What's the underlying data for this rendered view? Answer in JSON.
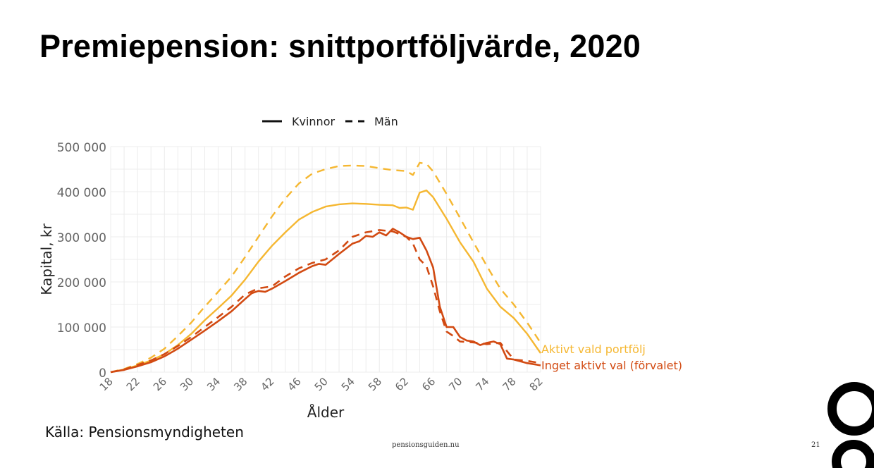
{
  "slide": {
    "title": "Premiepension: snittportföljvärde, 2020",
    "source": "Källa: Pensionsmyndigheten",
    "footer_site": "pensionsguiden.nu",
    "page_number": "21"
  },
  "colors": {
    "aktivt": "#f5b731",
    "inget": "#d24a12",
    "grid": "#ececec",
    "axis_text": "#666666"
  },
  "chart_data": {
    "type": "line",
    "title": "",
    "xlabel": "Ålder",
    "ylabel": "Kapital, kr",
    "xlim": [
      18,
      82
    ],
    "ylim": [
      0,
      500000
    ],
    "x_ticks": [
      18,
      22,
      26,
      30,
      34,
      38,
      42,
      46,
      50,
      54,
      58,
      62,
      66,
      70,
      74,
      78,
      82
    ],
    "x_tick_labels": [
      "18",
      "22",
      "26",
      "30",
      "34",
      "38",
      "42",
      "46",
      "50",
      "54",
      "58",
      "62",
      "66",
      "70",
      "74",
      "78",
      "82"
    ],
    "y_ticks": [
      0,
      100000,
      200000,
      300000,
      400000,
      500000
    ],
    "y_tick_labels": [
      "0",
      "100 000",
      "200 000",
      "300 000",
      "400 000",
      "500 000"
    ],
    "grid": true,
    "legend": {
      "position": "top",
      "entries": [
        {
          "label": "Kvinnor",
          "style": "solid"
        },
        {
          "label": "Män",
          "style": "dashed"
        }
      ]
    },
    "annotations": [
      {
        "label": "Aktivt vald portfölj",
        "series_group": "aktivt"
      },
      {
        "label": "Inget aktivt val (förvalet)",
        "series_group": "inget"
      }
    ],
    "series": [
      {
        "name": "Aktivt vald portfölj – Kvinnor",
        "group": "aktivt",
        "style": "solid",
        "x": [
          18,
          20,
          22,
          24,
          26,
          28,
          30,
          32,
          34,
          36,
          38,
          40,
          42,
          44,
          46,
          48,
          50,
          52,
          54,
          56,
          58,
          60,
          61,
          62,
          63,
          64,
          65,
          66,
          68,
          70,
          72,
          74,
          76,
          78,
          80,
          82
        ],
        "y": [
          0,
          6000,
          15000,
          26000,
          40000,
          60000,
          85000,
          115000,
          142000,
          170000,
          205000,
          245000,
          280000,
          310000,
          338000,
          355000,
          367000,
          372000,
          374000,
          373000,
          371000,
          370000,
          364000,
          365000,
          360000,
          398000,
          403000,
          388000,
          340000,
          288000,
          245000,
          185000,
          145000,
          120000,
          85000,
          42000
        ]
      },
      {
        "name": "Aktivt vald portfölj – Män",
        "group": "aktivt",
        "style": "dashed",
        "x": [
          18,
          20,
          22,
          24,
          26,
          28,
          30,
          32,
          34,
          36,
          38,
          40,
          42,
          44,
          46,
          48,
          50,
          52,
          54,
          56,
          58,
          60,
          62,
          63,
          64,
          65,
          66,
          68,
          70,
          72,
          74,
          76,
          78,
          80,
          82
        ],
        "y": [
          0,
          7000,
          18000,
          32000,
          52000,
          80000,
          110000,
          145000,
          178000,
          212000,
          255000,
          300000,
          345000,
          385000,
          418000,
          440000,
          450000,
          457000,
          458000,
          457000,
          452000,
          448000,
          446000,
          437000,
          464000,
          462000,
          445000,
          395000,
          342000,
          288000,
          235000,
          185000,
          150000,
          110000,
          65000
        ]
      },
      {
        "name": "Inget aktivt val – Kvinnor",
        "group": "inget",
        "style": "solid",
        "x": [
          18,
          20,
          22,
          24,
          26,
          28,
          30,
          32,
          34,
          36,
          38,
          39,
          40,
          41,
          42,
          44,
          46,
          48,
          49,
          50,
          52,
          54,
          55,
          56,
          57,
          58,
          59,
          60,
          61,
          62,
          63,
          64,
          65,
          66,
          67,
          68,
          69,
          70,
          71,
          72,
          73,
          74,
          75,
          76,
          77,
          78,
          80,
          82
        ],
        "y": [
          0,
          5000,
          13000,
          22000,
          35000,
          52000,
          72000,
          92000,
          113000,
          135000,
          162000,
          175000,
          180000,
          178000,
          185000,
          202000,
          220000,
          235000,
          240000,
          238000,
          262000,
          285000,
          290000,
          302000,
          300000,
          310000,
          303000,
          318000,
          310000,
          300000,
          295000,
          298000,
          270000,
          232000,
          145000,
          100000,
          100000,
          78000,
          70000,
          68000,
          60000,
          65000,
          68000,
          62000,
          30000,
          28000,
          20000,
          15000
        ]
      },
      {
        "name": "Inget aktivt val – Män",
        "group": "inget",
        "style": "dashed",
        "x": [
          18,
          20,
          22,
          24,
          26,
          28,
          30,
          32,
          34,
          36,
          38,
          40,
          42,
          44,
          46,
          48,
          50,
          52,
          54,
          56,
          58,
          60,
          62,
          63,
          64,
          65,
          66,
          67,
          68,
          69,
          70,
          72,
          74,
          76,
          78,
          80,
          82
        ],
        "y": [
          0,
          6000,
          16000,
          26000,
          40000,
          58000,
          78000,
          100000,
          122000,
          145000,
          172000,
          186000,
          190000,
          212000,
          230000,
          242000,
          250000,
          270000,
          300000,
          310000,
          315000,
          312000,
          300000,
          285000,
          250000,
          235000,
          190000,
          135000,
          90000,
          80000,
          68000,
          66000,
          62000,
          65000,
          28000,
          25000,
          20000
        ]
      }
    ]
  }
}
